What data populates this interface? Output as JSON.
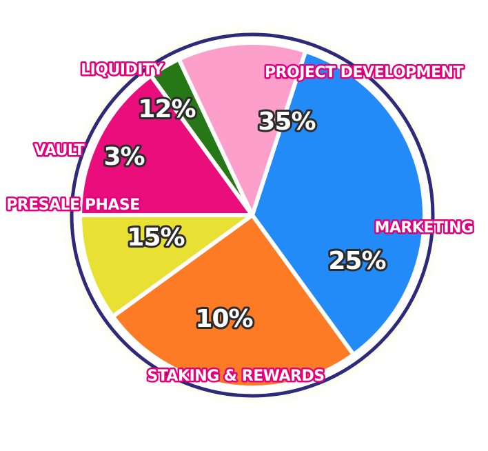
{
  "chart_data": {
    "type": "pie",
    "start_angle_deg": 18,
    "direction": "clockwise",
    "slices": [
      {
        "label": "PROJECT DEVELOPMENT",
        "value": 35,
        "value_label": "35%",
        "color": "#228bf7"
      },
      {
        "label": "MARKETING",
        "value": 25,
        "value_label": "25%",
        "color": "#fd7b25"
      },
      {
        "label": "STAKING & REWARDS",
        "value": 10,
        "value_label": "10%",
        "color": "#e9e034"
      },
      {
        "label": "PRESALE PHASE",
        "value": 15,
        "value_label": "15%",
        "color": "#ea0e7c"
      },
      {
        "label": "VAULT",
        "value": 3,
        "value_label": "3%",
        "color": "#267816"
      },
      {
        "label": "LIQUIDITY",
        "value": 12,
        "value_label": "12%",
        "color": "#fc9fca"
      }
    ],
    "colors": {
      "rim": "#2d2a7a",
      "glow": "#fff3a8",
      "label_outline": "#e4007c",
      "percent_outline": "#2b2b2b"
    }
  }
}
